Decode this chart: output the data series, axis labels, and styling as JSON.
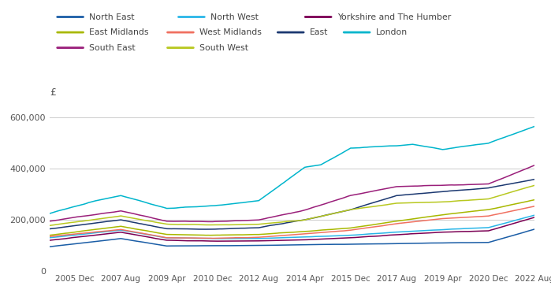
{
  "background_color": "#ffffff",
  "grid_color": "#cccccc",
  "ylim": [
    0,
    650000
  ],
  "ytick_labels": [
    "0",
    "200,000",
    "400,000",
    "600,000"
  ],
  "ytick_values": [
    0,
    200000,
    400000,
    600000
  ],
  "ylabel": "£",
  "xtick_labels": [
    "2005 Dec",
    "2007 Aug",
    "2009 Apr",
    "2010 Dec",
    "2012 Aug",
    "2014 Apr",
    "2015 Dec",
    "2017 Aug",
    "2019 Apr",
    "2020 Dec",
    "2022 Aug"
  ],
  "xtick_positions": [
    11,
    31,
    51,
    71,
    91,
    111,
    131,
    151,
    171,
    191,
    211
  ],
  "legend_row1": [
    "North East",
    "North West",
    "Yorkshire and The Humber"
  ],
  "legend_row2": [
    "East Midlands",
    "West Midlands",
    "East",
    "London"
  ],
  "legend_row3": [
    "South East",
    "South West"
  ],
  "series": {
    "North East": {
      "color": "#1a5da6",
      "waypoints_x": [
        0,
        31,
        51,
        71,
        91,
        111,
        131,
        151,
        171,
        191,
        211
      ],
      "waypoints_y": [
        95000,
        127000,
        98000,
        99000,
        100000,
        103000,
        105000,
        107000,
        110000,
        112000,
        163000
      ]
    },
    "North West": {
      "color": "#29b6e8",
      "waypoints_x": [
        0,
        31,
        51,
        71,
        91,
        111,
        131,
        151,
        171,
        191,
        211
      ],
      "waypoints_y": [
        130000,
        160000,
        130000,
        127000,
        127000,
        133000,
        140000,
        152000,
        162000,
        170000,
        218000
      ]
    },
    "Yorkshire and The Humber": {
      "color": "#7b0054",
      "waypoints_x": [
        0,
        31,
        51,
        71,
        91,
        111,
        131,
        151,
        171,
        191,
        211
      ],
      "waypoints_y": [
        120000,
        152000,
        120000,
        117000,
        118000,
        122000,
        130000,
        142000,
        152000,
        157000,
        210000
      ]
    },
    "East Midlands": {
      "color": "#a8b800",
      "waypoints_x": [
        0,
        31,
        51,
        71,
        91,
        111,
        131,
        151,
        171,
        191,
        211
      ],
      "waypoints_y": [
        140000,
        175000,
        143000,
        140000,
        143000,
        155000,
        168000,
        195000,
        220000,
        240000,
        278000
      ]
    },
    "West Midlands": {
      "color": "#f07060",
      "waypoints_x": [
        0,
        31,
        51,
        71,
        91,
        111,
        131,
        151,
        171,
        191,
        211
      ],
      "waypoints_y": [
        135000,
        162000,
        130000,
        128000,
        132000,
        145000,
        160000,
        185000,
        205000,
        215000,
        253000
      ]
    },
    "East": {
      "color": "#1b3870",
      "waypoints_x": [
        0,
        31,
        51,
        71,
        91,
        111,
        131,
        151,
        171,
        191,
        211
      ],
      "waypoints_y": [
        165000,
        200000,
        165000,
        163000,
        170000,
        200000,
        240000,
        295000,
        310000,
        325000,
        358000
      ]
    },
    "London": {
      "color": "#00b5cc",
      "waypoints_x": [
        0,
        18,
        31,
        51,
        71,
        91,
        111,
        118,
        131,
        151,
        158,
        171,
        191,
        211
      ],
      "waypoints_y": [
        225000,
        270000,
        295000,
        245000,
        255000,
        275000,
        405000,
        415000,
        480000,
        490000,
        495000,
        475000,
        500000,
        565000
      ]
    },
    "South East": {
      "color": "#9a1f7a",
      "waypoints_x": [
        0,
        31,
        51,
        71,
        91,
        111,
        131,
        151,
        171,
        191,
        211
      ],
      "waypoints_y": [
        195000,
        235000,
        195000,
        193000,
        200000,
        238000,
        295000,
        330000,
        335000,
        340000,
        413000
      ]
    },
    "South West": {
      "color": "#b8c820",
      "waypoints_x": [
        0,
        31,
        51,
        71,
        91,
        111,
        131,
        151,
        171,
        191,
        211
      ],
      "waypoints_y": [
        178000,
        215000,
        183000,
        180000,
        183000,
        200000,
        240000,
        265000,
        270000,
        282000,
        335000
      ]
    }
  },
  "legend_order": [
    "North East",
    "North West",
    "Yorkshire and The Humber",
    "East Midlands",
    "West Midlands",
    "East",
    "London",
    "South East",
    "South West"
  ]
}
